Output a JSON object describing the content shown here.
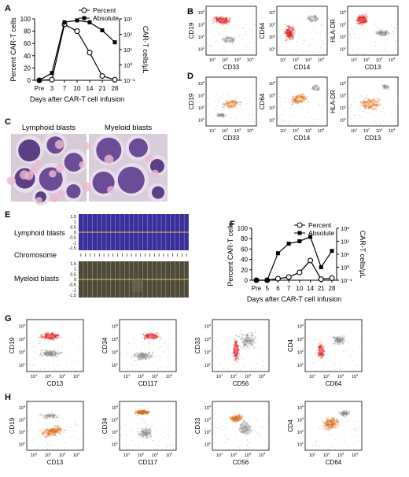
{
  "panels": {
    "A": {
      "label": "A"
    },
    "B": {
      "label": "B"
    },
    "C": {
      "label": "C"
    },
    "D": {
      "label": "D"
    },
    "E": {
      "label": "E"
    },
    "F": {
      "label": "F"
    },
    "G": {
      "label": "G"
    },
    "H": {
      "label": "H"
    }
  },
  "chart_data": [
    {
      "id": "A",
      "type": "line",
      "xlabel": "Days after CAR-T cell infusion",
      "categories": [
        "Pre",
        "3",
        "7",
        "10",
        "14",
        "21",
        "28"
      ],
      "ylabel_left": "Percent CAR-T cells",
      "ylabel_right": "CAR-T cells/μL",
      "ylim_left": [
        0,
        100
      ],
      "yticks_left": [
        "0",
        "20",
        "40",
        "60",
        "80",
        "100"
      ],
      "yticks_right": [
        "10⁻¹",
        "10⁰",
        "10¹",
        "10²",
        "10³"
      ],
      "y_right_scale": "log",
      "legend_position": "top-right",
      "series": [
        {
          "name": "Percent",
          "marker": "open-circle",
          "axis": "left",
          "values": [
            0,
            1,
            91,
            80,
            45,
            7,
            1
          ]
        },
        {
          "name": "Absolute",
          "marker": "filled-square",
          "axis": "right",
          "values": [
            0.1,
            0.3,
            600,
            800,
            600,
            180,
            30
          ]
        }
      ]
    },
    {
      "id": "F",
      "type": "line",
      "xlabel": "Days after CAR-T cell infusion",
      "categories": [
        "Pre",
        "5",
        "6",
        "7",
        "10",
        "14",
        "21",
        "28"
      ],
      "ylabel_left": "Percent CAR-T cells",
      "ylabel_right": "CAR-T cells/μL",
      "ylim_left": [
        0,
        100
      ],
      "yticks_left": [
        "0",
        "20",
        "40",
        "60",
        "80",
        "100"
      ],
      "yticks_right": [
        "10⁻¹",
        "10⁰",
        "10¹",
        "10²",
        "10³"
      ],
      "y_right_scale": "log",
      "legend_position": "top-right",
      "series": [
        {
          "name": "Percent",
          "marker": "open-circle",
          "axis": "left",
          "values": [
            0,
            0,
            3,
            6,
            15,
            38,
            2,
            4
          ]
        },
        {
          "name": "Absolute",
          "marker": "filled-square",
          "axis": "right",
          "values": [
            0.1,
            0.1,
            12,
            65,
            100,
            220,
            1,
            18
          ]
        }
      ]
    }
  ],
  "flow": {
    "B": [
      {
        "y": "CD19",
        "x": "CD33"
      },
      {
        "y": "CD64",
        "x": "CD14"
      },
      {
        "y": "HLA-DR",
        "x": "CD13"
      }
    ],
    "D": [
      {
        "y": "CD19",
        "x": "CD33"
      },
      {
        "y": "CD64",
        "x": "CD14"
      },
      {
        "y": "HLA-DR",
        "x": "CD13"
      }
    ],
    "G": [
      {
        "y": "CD19",
        "x": "CD13"
      },
      {
        "y": "CD34",
        "x": "CD117"
      },
      {
        "y": "CD33",
        "x": "CD56"
      },
      {
        "y": "CD4",
        "x": "CD64"
      }
    ],
    "H": [
      {
        "y": "CD19",
        "x": "CD13"
      },
      {
        "y": "CD34",
        "x": "CD117"
      },
      {
        "y": "CD33",
        "x": "CD56"
      },
      {
        "y": "CD4",
        "x": "CD64"
      }
    ],
    "tick_exponents": [
      "1",
      "2",
      "3",
      "4"
    ]
  },
  "smear": {
    "lymphoid": "Lymphoid blasts",
    "myeloid": "Myeloid blasts"
  },
  "cnv": {
    "lymphoid": "Lymphoid blasts",
    "myeloid": "Myeloid blasts",
    "middle": "Chromosome",
    "yticks": [
      "1.5",
      "1",
      "0.5",
      "0",
      "-0.5",
      "-1",
      "-1.5"
    ]
  },
  "colors": {
    "red": "#d91c1c",
    "orange": "#d9691a",
    "gray": "#8a8a8a",
    "blue": "#3a2f9a",
    "olive": "#4d4a38",
    "yellow": "#e6c63a"
  }
}
